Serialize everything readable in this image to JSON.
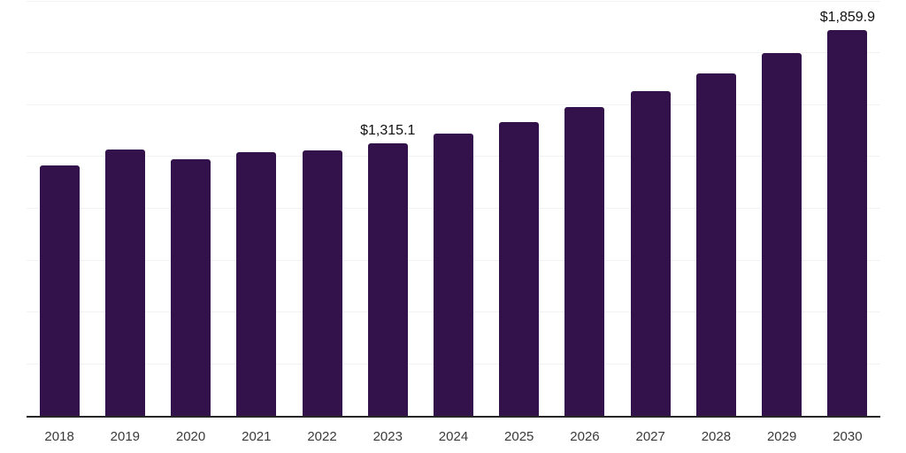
{
  "chart_data": {
    "type": "bar",
    "categories": [
      "2018",
      "2019",
      "2020",
      "2021",
      "2022",
      "2023",
      "2024",
      "2025",
      "2026",
      "2027",
      "2028",
      "2029",
      "2030"
    ],
    "values": [
      1205,
      1283,
      1235,
      1270,
      1281,
      1315.1,
      1360,
      1417,
      1490,
      1566,
      1652,
      1748,
      1859.9
    ],
    "annotations": [
      {
        "category": "2023",
        "text": "$1,315.1"
      },
      {
        "category": "2030",
        "text": "$1,859.9"
      }
    ],
    "xlabel": "",
    "ylabel": "",
    "ylim": [
      0,
      2000
    ],
    "gridline_step": 250,
    "grid": true,
    "legend": "none",
    "colors": {
      "bar": "#33114a",
      "gridline": "#f2f2f4",
      "axis": "#262626",
      "tick_label": "#3a3a3a",
      "value_label": "#111111",
      "background": "#ffffff"
    }
  }
}
